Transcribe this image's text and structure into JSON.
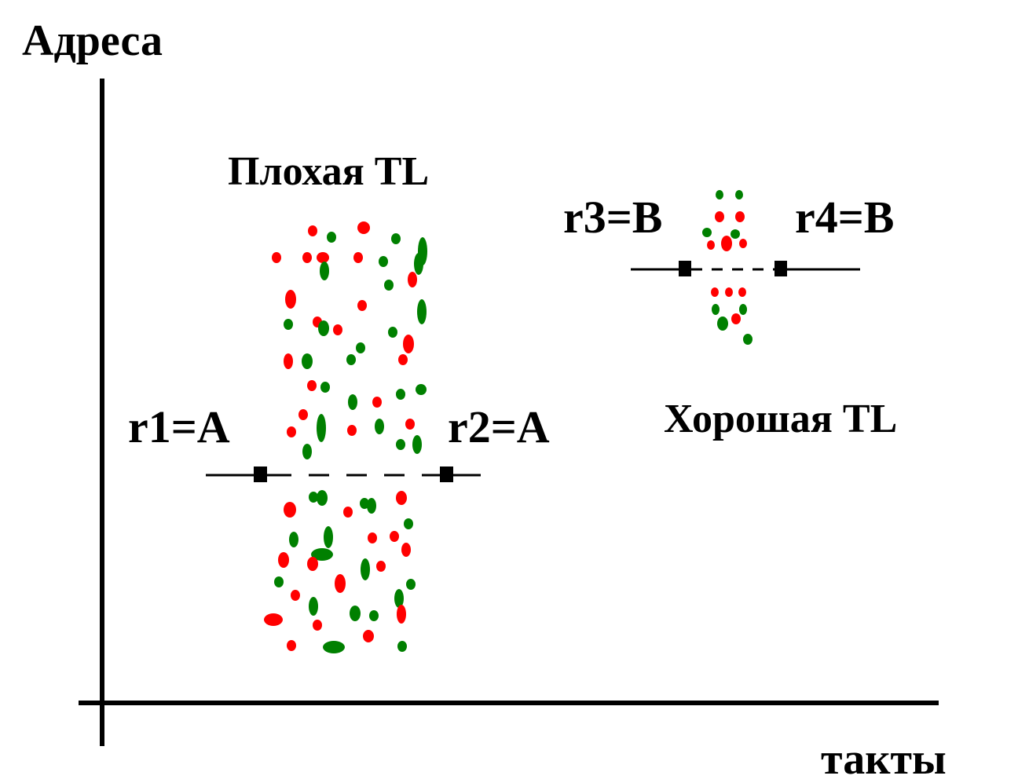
{
  "axes": {
    "y_label": "Адреса",
    "x_label": "такты"
  },
  "bad_region": {
    "title": "Плохая TL",
    "left_marker": "r1=A",
    "right_marker": "r2=A"
  },
  "good_region": {
    "title": "Хорошая TL",
    "left_marker": "r3=B",
    "right_marker": "r4=B"
  },
  "colors": {
    "red_dot": "#ff0000",
    "green_dot": "#008000",
    "axis": "#000000"
  }
}
